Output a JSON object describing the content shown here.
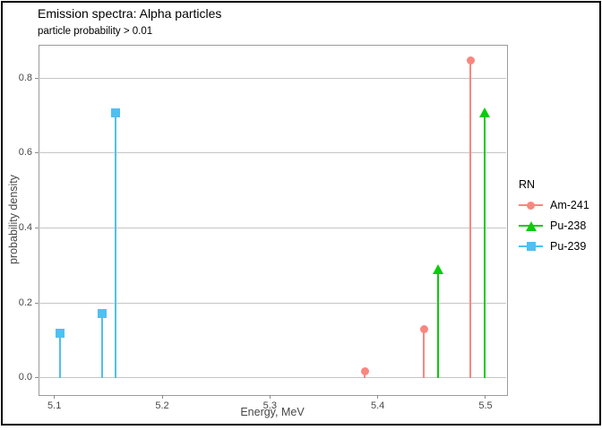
{
  "figure": {
    "title": "Emission spectra: Alpha particles",
    "subtitle": "particle probability > 0.01",
    "outer_border_color": "#000000",
    "panel_border_color": "#9b9b9b",
    "gridline_color": "#c6c6c6"
  },
  "chart_data": {
    "type": "lollipop",
    "title": "Emission spectra: Alpha particles",
    "subtitle": "particle probability > 0.01",
    "xlabel": "Energy, MeV",
    "ylabel": "probability density",
    "xlim": [
      5.0853,
      5.5187
    ],
    "ylim": [
      -0.0424,
      0.8904
    ],
    "x_ticks": [
      5.1,
      5.2,
      5.3,
      5.4,
      5.5
    ],
    "y_ticks": [
      0.0,
      0.2,
      0.4,
      0.6,
      0.8
    ],
    "grid": "horizontal-only",
    "legend_position": "right",
    "legend_title": "RN",
    "series": [
      {
        "name": "Am-241",
        "color": "#F8877F",
        "marker": "circle",
        "points": [
          [
            5.388,
            0.017
          ],
          [
            5.443,
            0.131
          ],
          [
            5.486,
            0.848
          ]
        ]
      },
      {
        "name": "Pu-238",
        "color": "#0ACC0A",
        "marker": "triangle",
        "points": [
          [
            5.456,
            0.29
          ],
          [
            5.499,
            0.709
          ]
        ]
      },
      {
        "name": "Pu-239",
        "color": "#50BFF1",
        "marker": "square",
        "points": [
          [
            5.105,
            0.119
          ],
          [
            5.144,
            0.171
          ],
          [
            5.157,
            0.708
          ]
        ]
      }
    ]
  }
}
